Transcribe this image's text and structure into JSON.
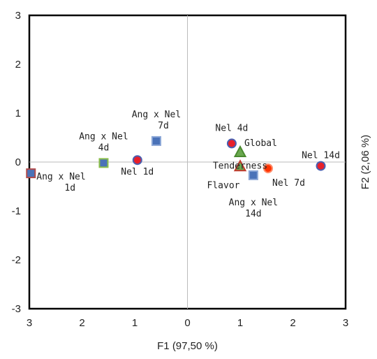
{
  "chart_data": {
    "type": "scatter",
    "title": "",
    "xlabel": "F1 (97,50 %)",
    "ylabel": "F2 (2,06 %)",
    "xlim": [
      -3,
      3
    ],
    "ylim": [
      -3,
      3
    ],
    "grid": false,
    "x_ticks": [
      {
        "value": -3,
        "label": "3"
      },
      {
        "value": -2,
        "label": "2"
      },
      {
        "value": -1,
        "label": "1"
      },
      {
        "value": 0,
        "label": "0"
      },
      {
        "value": 1,
        "label": "1"
      },
      {
        "value": 2,
        "label": "2"
      },
      {
        "value": 3,
        "label": "3"
      }
    ],
    "y_ticks": [
      {
        "value": 3,
        "label": "3"
      },
      {
        "value": 2,
        "label": "2"
      },
      {
        "value": 1,
        "label": "1"
      },
      {
        "value": 0,
        "label": "0"
      },
      {
        "value": -1,
        "label": "-1"
      },
      {
        "value": -2,
        "label": "-2"
      },
      {
        "value": -3,
        "label": "-3"
      }
    ],
    "points": [
      {
        "label": [
          "Ang x Nel",
          "1d"
        ],
        "x": -2.97,
        "y": -0.23,
        "shape": "square",
        "color": "#4a72b8",
        "border": "#b04a4a"
      },
      {
        "label": [
          "Ang x Nel",
          "4d"
        ],
        "x": -1.59,
        "y": -0.02,
        "shape": "square",
        "color": "#4a72b8",
        "border": "#8bbf4a"
      },
      {
        "label": [
          "Ang x Nel",
          "7d"
        ],
        "x": -0.59,
        "y": 0.43,
        "shape": "square",
        "color": "#4a72b8",
        "border": "#8aa6d6"
      },
      {
        "label": [
          "Ang x Nel",
          "14d"
        ],
        "x": 1.25,
        "y": -0.27,
        "shape": "square",
        "color": "#4a72b8",
        "border": "#8aa6d6"
      },
      {
        "label": [
          "Nel 1d"
        ],
        "x": -0.95,
        "y": 0.04,
        "shape": "circle",
        "color": "#e8202a",
        "border": "#4a5fb0"
      },
      {
        "label": [
          "Nel 4d"
        ],
        "x": 0.84,
        "y": 0.38,
        "shape": "circle",
        "color": "#e8202a",
        "border": "#4a5fb0"
      },
      {
        "label": [
          "Nel 7d"
        ],
        "x": 1.53,
        "y": -0.13,
        "shape": "circle",
        "color": "#ff3300",
        "border": "#ff8c6a"
      },
      {
        "label": [
          "Nel 14d"
        ],
        "x": 2.53,
        "y": -0.08,
        "shape": "circle",
        "color": "#e8202a",
        "border": "#4a5fb0"
      },
      {
        "label": [
          "Global"
        ],
        "x": 1.0,
        "y": 0.2,
        "shape": "triangle",
        "color": "#6aa84f",
        "border": "#4a8a30"
      },
      {
        "label": [
          "Tenderness"
        ],
        "x": 1.0,
        "y": -0.09,
        "shape": "triangle",
        "color": "#6aa84f",
        "border": "#c0392b"
      },
      {
        "label": [
          "Flavor"
        ],
        "x": 1.0,
        "y": -0.09,
        "shape": "none",
        "color": "#6aa84f",
        "border": "#6aa84f"
      }
    ]
  }
}
